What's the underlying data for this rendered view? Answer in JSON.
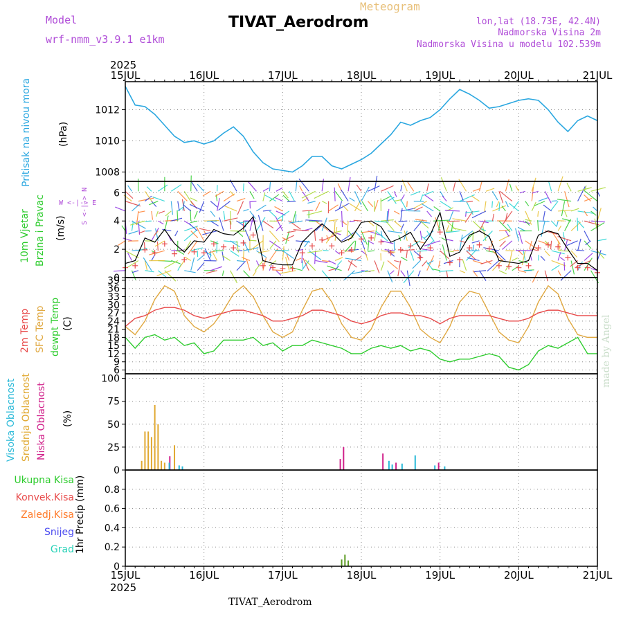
{
  "header": {
    "model_label": "Model",
    "model_name": "wrf-nmm_v3.9.1  e1km",
    "product": "Meteogram",
    "station": "TIVAT_Aerodrom",
    "location": "lon,lat (18.73E, 42.4N)",
    "elevation": "Nadmorska Visina 2m",
    "model_elevation": "Nadmorska Visina u modelu 102.539m",
    "credit": "made by Angel",
    "footer_station": "TIVAT_Aerodrom"
  },
  "time_axis": {
    "year": "2025",
    "labels": [
      "15JUL",
      "16JUL",
      "17JUL",
      "18JUL",
      "19JUL",
      "20JUL",
      "21JUL"
    ]
  },
  "panels": {
    "pressure": {
      "label": "Pritisak na nivou mora",
      "unit": "(hPa)"
    },
    "wind": {
      "label1": "10m Vjetar",
      "label2": "Brzina i Pravac",
      "unit": "(m/s)",
      "compass_n": "S <-|-> N",
      "compass_we": "W <-|-> E"
    },
    "temp": {
      "label1": "2m Temp",
      "label2": "SFC Temp",
      "label3": "dewpt Temp",
      "unit": "(C)"
    },
    "cloud": {
      "label1": "Visoka Oblacnost",
      "label2": "Srednja Oblacnost",
      "label3": "Niska Oblacnost",
      "unit": "(%)"
    },
    "precip": {
      "legend": [
        "Ukupna Kisa",
        "Konvek.Kisa",
        "Zaledj.Kisa",
        "Snijeg",
        "Grad"
      ],
      "unit": "1hr Precip (mm)"
    }
  },
  "colors": {
    "pressure": "#2aa7e0",
    "temp2m": "#e84a4a",
    "sfc": "#e0a840",
    "dewpt": "#2ecc2e",
    "wind_speed": "#000000",
    "gust": "#e84a4a",
    "high_cloud": "#29b9d8",
    "mid_cloud": "#e0a830",
    "low_cloud": "#d0208a",
    "total_rain": "#2ecc2e",
    "conv_rain": "#e84a4a",
    "frz_rain": "#ff7a28",
    "snow": "#4a4af0",
    "hail": "#2ad2b8"
  },
  "chart_data": [
    {
      "type": "line",
      "name": "pressure",
      "x_hours": [
        0,
        3,
        6,
        9,
        12,
        15,
        18,
        21,
        24,
        27,
        30,
        33,
        36,
        39,
        42,
        45,
        48,
        51,
        54,
        57,
        60,
        63,
        66,
        69,
        72,
        75,
        78,
        81,
        84,
        87,
        90,
        93,
        96,
        99,
        102,
        105,
        108,
        111,
        114,
        117,
        120,
        123,
        126,
        129,
        132,
        135,
        138,
        141,
        144
      ],
      "values": [
        1013.5,
        1012.3,
        1012.2,
        1011.7,
        1011.0,
        1010.3,
        1009.9,
        1010.0,
        1009.8,
        1010.0,
        1010.5,
        1010.9,
        1010.3,
        1009.3,
        1008.6,
        1008.2,
        1008.1,
        1008.0,
        1008.4,
        1009.0,
        1009.0,
        1008.4,
        1008.2,
        1008.5,
        1008.8,
        1009.2,
        1009.8,
        1010.4,
        1011.2,
        1011.0,
        1011.3,
        1011.5,
        1012.0,
        1012.7,
        1013.3,
        1013.0,
        1012.6,
        1012.1,
        1012.2,
        1012.4,
        1012.6,
        1012.7,
        1012.6,
        1012.0,
        1011.2,
        1010.6,
        1011.3,
        1011.6,
        1011.3
      ],
      "ylim": [
        1007.4,
        1013.8
      ],
      "yticks": [
        1008,
        1010,
        1012
      ]
    },
    {
      "type": "line",
      "name": "wind_speed",
      "x_hours": [
        0,
        3,
        6,
        9,
        12,
        15,
        18,
        21,
        24,
        27,
        30,
        33,
        36,
        39,
        42,
        45,
        48,
        51,
        54,
        57,
        60,
        63,
        66,
        69,
        72,
        75,
        78,
        81,
        84,
        87,
        90,
        93,
        96,
        99,
        102,
        105,
        108,
        111,
        114,
        117,
        120,
        123,
        126,
        129,
        132,
        135,
        138,
        141,
        144
      ],
      "values": [
        1.0,
        1.2,
        2.8,
        2.5,
        3.4,
        2.4,
        1.8,
        2.6,
        2.5,
        3.4,
        3.1,
        3.0,
        3.5,
        4.3,
        1.2,
        1.0,
        0.9,
        0.9,
        2.5,
        3.2,
        3.8,
        3.2,
        2.5,
        2.8,
        3.9,
        4.0,
        3.6,
        2.5,
        2.8,
        3.2,
        2.0,
        3.0,
        4.6,
        1.5,
        1.8,
        3.0,
        3.3,
        2.9,
        1.2,
        1.1,
        1.0,
        1.2,
        3.0,
        3.3,
        3.1,
        2.0,
        1.0,
        1.0,
        0.5
      ],
      "ylim": [
        0,
        6.8
      ],
      "yticks": [
        0,
        2,
        4,
        6
      ]
    },
    {
      "type": "line",
      "name": "temp_2m",
      "x_hours": [
        0,
        3,
        6,
        9,
        12,
        15,
        18,
        21,
        24,
        27,
        30,
        33,
        36,
        39,
        42,
        45,
        48,
        51,
        54,
        57,
        60,
        63,
        66,
        69,
        72,
        75,
        78,
        81,
        84,
        87,
        90,
        93,
        96,
        99,
        102,
        105,
        108,
        111,
        114,
        117,
        120,
        123,
        126,
        129,
        132,
        135,
        138,
        141,
        144
      ],
      "values": [
        22,
        25,
        26,
        28,
        29,
        29,
        28,
        26,
        25,
        26,
        27,
        28,
        28,
        27,
        26,
        24,
        24,
        25,
        26,
        28,
        28,
        27,
        26,
        24,
        23,
        24,
        26,
        27,
        27,
        26,
        26,
        25,
        23,
        25,
        26,
        26,
        26,
        26,
        25,
        24,
        24,
        25,
        27,
        28,
        28,
        27,
        26,
        26,
        26
      ],
      "ylim": [
        4.6,
        40
      ],
      "yticks": [
        6,
        9,
        12,
        15,
        18,
        21,
        24,
        27,
        30,
        33,
        36,
        39
      ]
    },
    {
      "type": "line",
      "name": "sfc_temp",
      "x_hours": [
        0,
        3,
        6,
        9,
        12,
        15,
        18,
        21,
        24,
        27,
        30,
        33,
        36,
        39,
        42,
        45,
        48,
        51,
        54,
        57,
        60,
        63,
        66,
        69,
        72,
        75,
        78,
        81,
        84,
        87,
        90,
        93,
        96,
        99,
        102,
        105,
        108,
        111,
        114,
        117,
        120,
        123,
        126,
        129,
        132,
        135,
        138,
        141,
        144
      ],
      "values": [
        22,
        19,
        24,
        32,
        37,
        35,
        26,
        22,
        20,
        23,
        28,
        34,
        37,
        33,
        26,
        20,
        18,
        20,
        28,
        35,
        36,
        31,
        23,
        18,
        17,
        21,
        29,
        35,
        35,
        29,
        21,
        18,
        16,
        22,
        31,
        35,
        34,
        27,
        20,
        17,
        16,
        22,
        31,
        37,
        34,
        25,
        19,
        18,
        18
      ],
      "ylim": [
        4.6,
        40
      ]
    },
    {
      "type": "line",
      "name": "dewpt_temp",
      "x_hours": [
        0,
        3,
        6,
        9,
        12,
        15,
        18,
        21,
        24,
        27,
        30,
        33,
        36,
        39,
        42,
        45,
        48,
        51,
        54,
        57,
        60,
        63,
        66,
        69,
        72,
        75,
        78,
        81,
        84,
        87,
        90,
        93,
        96,
        99,
        102,
        105,
        108,
        111,
        114,
        117,
        120,
        123,
        126,
        129,
        132,
        135,
        138,
        141,
        144
      ],
      "values": [
        18,
        14,
        18,
        19,
        17,
        18,
        15,
        16,
        12,
        13,
        17,
        17,
        17,
        18,
        15,
        16,
        13,
        15,
        15,
        17,
        16,
        15,
        14,
        12,
        12,
        14,
        15,
        14,
        15,
        13,
        14,
        13,
        10,
        9,
        10,
        10,
        11,
        12,
        11,
        7,
        6,
        8,
        13,
        15,
        14,
        16,
        18,
        12,
        12
      ],
      "ylim": [
        4.6,
        40
      ]
    },
    {
      "type": "bar",
      "name": "cloud_cover",
      "ylim": [
        0,
        105
      ],
      "yticks": [
        0,
        25,
        50,
        75,
        100
      ],
      "mid_hours": [
        5,
        6,
        7,
        8,
        9,
        10,
        11,
        12,
        15
      ],
      "mid_values": [
        10,
        42,
        42,
        36,
        71,
        50,
        10,
        8,
        27
      ],
      "low_hours": [
        14,
        66,
        67,
        79,
        83,
        96
      ],
      "low_values": [
        15,
        12,
        25,
        18,
        8,
        8
      ],
      "high_hours": [
        13,
        16,
        17,
        80,
        81,
        84,
        88,
        94,
        97
      ],
      "high_values": [
        8,
        5,
        4,
        10,
        6,
        7,
        16,
        5,
        4
      ]
    },
    {
      "type": "bar",
      "name": "precip_1hr",
      "ylim": [
        0,
        1.0
      ],
      "yticks": [
        0,
        0.2,
        0.4,
        0.6,
        0.8
      ],
      "total_hours": [
        66,
        67,
        68
      ],
      "total_values": [
        0.07,
        0.12,
        0.06
      ]
    }
  ]
}
